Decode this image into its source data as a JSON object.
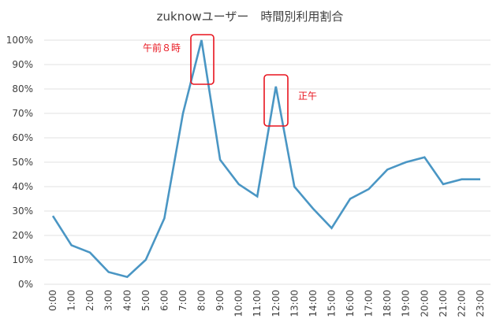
{
  "chart_data": {
    "type": "line",
    "title": "zuknowユーザー　時間別利用割合",
    "xlabel": "",
    "ylabel": "",
    "ylim": [
      0,
      100
    ],
    "y_tick_format": "percent",
    "y_ticks": [
      "0%",
      "10%",
      "20%",
      "30%",
      "40%",
      "50%",
      "60%",
      "70%",
      "80%",
      "90%",
      "100%"
    ],
    "grid": true,
    "legend": null,
    "categories": [
      "0:00",
      "1:00",
      "2:00",
      "3:00",
      "4:00",
      "5:00",
      "6:00",
      "7:00",
      "8:00",
      "9:00",
      "10:00",
      "11:00",
      "12:00",
      "13:00",
      "14:00",
      "15:00",
      "16:00",
      "17:00",
      "18:00",
      "19:00",
      "20:00",
      "21:00",
      "22:00",
      "23:00"
    ],
    "series": [
      {
        "name": "利用割合",
        "color": "#4a96c4",
        "values": [
          28,
          16,
          13,
          5,
          3,
          10,
          27,
          70,
          100,
          51,
          41,
          36,
          81,
          40,
          31,
          23,
          35,
          39,
          47,
          50,
          52,
          41,
          43,
          43
        ]
      }
    ],
    "annotations": [
      {
        "label": "午前８時",
        "target_category": "8:00",
        "color": "#e8141e"
      },
      {
        "label": "正午",
        "target_category": "12:00",
        "color": "#e8141e"
      }
    ]
  }
}
